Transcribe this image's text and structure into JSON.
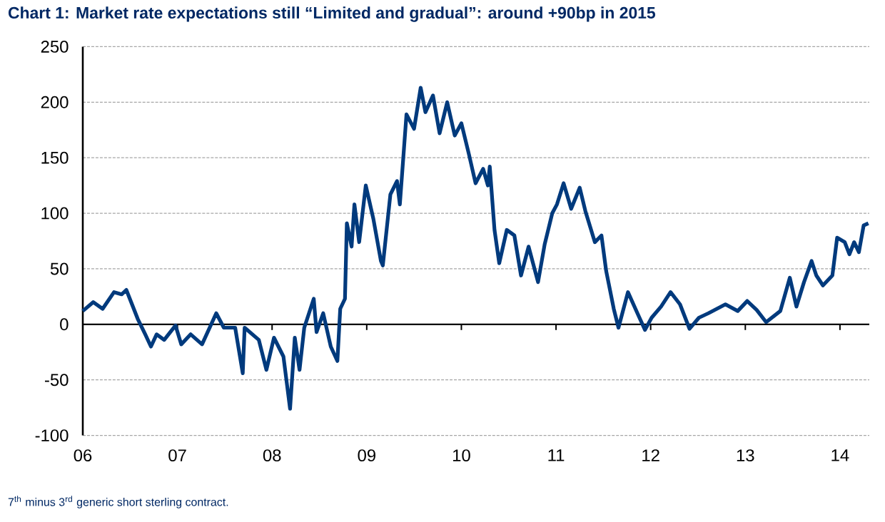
{
  "chart_data": {
    "type": "line",
    "title": "Chart 1: Market rate expectations still “Limited and gradual”: around +90bp in 2015",
    "annotations": [
      "7$^{th}$ minus 3$^{rd}$ generic short sterling contract."
    ],
    "x": [
      2006.0,
      2006.11,
      2006.21,
      2006.33,
      2006.41,
      2006.46,
      2006.52,
      2006.58,
      2006.66,
      2006.72,
      2006.78,
      2006.86,
      2006.98,
      2007.04,
      2007.14,
      2007.26,
      2007.41,
      2007.49,
      2007.61,
      2007.69,
      2007.71,
      2007.86,
      2007.94,
      2008.02,
      2008.12,
      2008.19,
      2008.24,
      2008.29,
      2008.34,
      2008.44,
      2008.47,
      2008.54,
      2008.62,
      2008.69,
      2008.72,
      2008.77,
      2008.79,
      2008.84,
      2008.87,
      2008.92,
      2008.99,
      2009.07,
      2009.15,
      2009.17,
      2009.25,
      2009.32,
      2009.35,
      2009.42,
      2009.5,
      2009.57,
      2009.62,
      2009.7,
      2009.77,
      2009.85,
      2009.93,
      2010.0,
      2010.08,
      2010.15,
      2010.23,
      2010.28,
      2010.3,
      2010.35,
      2010.4,
      2010.48,
      2010.56,
      2010.63,
      2010.71,
      2010.81,
      2010.88,
      2010.96,
      2011.01,
      2011.08,
      2011.16,
      2011.25,
      2011.31,
      2011.41,
      2011.48,
      2011.53,
      2011.61,
      2011.66,
      2011.76,
      2011.86,
      2011.94,
      2012.01,
      2012.11,
      2012.21,
      2012.31,
      2012.41,
      2012.51,
      2012.61,
      2012.79,
      2012.92,
      2013.02,
      2013.12,
      2013.22,
      2013.37,
      2013.47,
      2013.54,
      2013.62,
      2013.7,
      2013.75,
      2013.82,
      2013.92,
      2013.97,
      2014.05,
      2014.1,
      2014.15,
      2014.2,
      2014.25,
      2014.3
    ],
    "values": [
      12,
      20,
      14,
      29,
      27,
      31,
      18,
      5,
      -9,
      -20,
      -9,
      -14,
      -1,
      -18,
      -9,
      -18,
      10,
      -3,
      -3,
      -44,
      -3,
      -14,
      -41,
      -12,
      -29,
      -76,
      -12,
      -41,
      -3,
      23,
      -7,
      10,
      -20,
      -33,
      14,
      23,
      91,
      70,
      108,
      74,
      125,
      95,
      57,
      53,
      117,
      129,
      108,
      189,
      176,
      213,
      191,
      206,
      172,
      200,
      170,
      181,
      153,
      127,
      140,
      125,
      142,
      85,
      55,
      85,
      80,
      44,
      70,
      38,
      72,
      100,
      108,
      127,
      104,
      123,
      102,
      74,
      80,
      48,
      14,
      -3,
      29,
      10,
      -5,
      6,
      16,
      29,
      18,
      -4,
      6,
      10,
      18,
      12,
      21,
      13,
      2,
      12,
      42,
      16,
      38,
      57,
      44,
      35,
      44,
      78,
      74,
      63,
      74,
      65,
      89,
      91
    ],
    "color": "#003a7d",
    "xlim": [
      2006.0,
      2014.31
    ],
    "xticks": [
      {
        "value": 2006,
        "label": "06"
      },
      {
        "value": 2007,
        "label": "07"
      },
      {
        "value": 2008,
        "label": "08"
      },
      {
        "value": 2009,
        "label": "09"
      },
      {
        "value": 2010,
        "label": "10"
      },
      {
        "value": 2011,
        "label": "11"
      },
      {
        "value": 2012,
        "label": "12"
      },
      {
        "value": 2013,
        "label": "13"
      },
      {
        "value": 2014,
        "label": "14"
      }
    ],
    "ylim": [
      -100,
      250
    ],
    "yticks": [
      -100,
      -50,
      0,
      50,
      100,
      150,
      200,
      250
    ],
    "grid": "y"
  }
}
